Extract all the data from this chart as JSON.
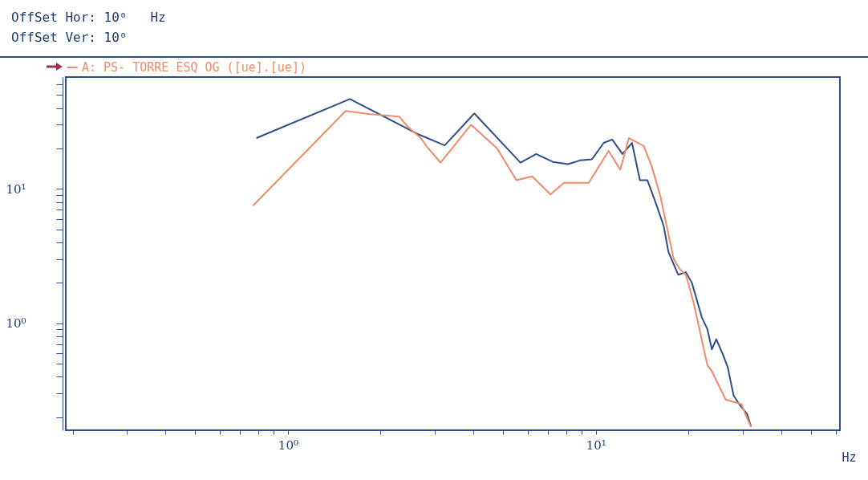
{
  "chart_data": {
    "type": "line",
    "xlabel": "Hz",
    "legend": "top left",
    "marker": "none",
    "line_style": "solid",
    "grid": false,
    "log": "xy",
    "annotations": [
      "OffSet Hor: 10⁰   Hz",
      "OffSet Ver: 10⁰"
    ],
    "xlim": [
      0.19,
      62
    ],
    "ylim": [
      0.16,
      68
    ],
    "xticks": [
      {
        "value": 0.2,
        "label": null
      },
      {
        "value": 0.3,
        "label": null
      },
      {
        "value": 0.4,
        "label": null
      },
      {
        "value": 0.5,
        "label": null
      },
      {
        "value": 0.6,
        "label": null
      },
      {
        "value": 0.7,
        "label": null
      },
      {
        "value": 0.8,
        "label": null
      },
      {
        "value": 0.9,
        "label": null
      },
      {
        "value": 1,
        "label": "10⁰"
      },
      {
        "value": 2,
        "label": null
      },
      {
        "value": 3,
        "label": null
      },
      {
        "value": 4,
        "label": null
      },
      {
        "value": 5,
        "label": null
      },
      {
        "value": 6,
        "label": null
      },
      {
        "value": 7,
        "label": null
      },
      {
        "value": 8,
        "label": null
      },
      {
        "value": 9,
        "label": null
      },
      {
        "value": 10,
        "label": "10¹"
      },
      {
        "value": 20,
        "label": null
      },
      {
        "value": 30,
        "label": null
      },
      {
        "value": 40,
        "label": null
      },
      {
        "value": 50,
        "label": null
      },
      {
        "value": 60,
        "label": null
      }
    ],
    "yticks": [
      {
        "value": 0.2,
        "label": null
      },
      {
        "value": 0.3,
        "label": null
      },
      {
        "value": 0.4,
        "label": null
      },
      {
        "value": 0.5,
        "label": null
      },
      {
        "value": 0.6,
        "label": null
      },
      {
        "value": 0.7,
        "label": null
      },
      {
        "value": 0.8,
        "label": null
      },
      {
        "value": 0.9,
        "label": null
      },
      {
        "value": 1,
        "label": "10⁰"
      },
      {
        "value": 2,
        "label": null
      },
      {
        "value": 3,
        "label": null
      },
      {
        "value": 4,
        "label": null
      },
      {
        "value": 5,
        "label": null
      },
      {
        "value": 6,
        "label": null
      },
      {
        "value": 7,
        "label": null
      },
      {
        "value": 8,
        "label": null
      },
      {
        "value": 9,
        "label": null
      },
      {
        "value": 10,
        "label": "10¹"
      },
      {
        "value": 20,
        "label": null
      },
      {
        "value": 30,
        "label": null
      },
      {
        "value": 40,
        "label": null
      },
      {
        "value": 50,
        "label": null
      },
      {
        "value": 60,
        "label": null
      }
    ],
    "series": [
      {
        "color": "#2e4e8c",
        "x": [
          0.79,
          1.59,
          2.64,
          3.23,
          4.03,
          5.69,
          6.4,
          7.25,
          8.12,
          8.88,
          9.71,
          10.6,
          11.3,
          12.2,
          13.1,
          13.9,
          14.7,
          15.7,
          16.6,
          17.2,
          18.5,
          19.6,
          20.5,
          22.1,
          23.0,
          23.8,
          24.6,
          25.9,
          26.8,
          28.0,
          29.2,
          31.0,
          31.9
        ],
        "values": [
          23.9,
          46.7,
          25.6,
          21.1,
          36.5,
          15.7,
          18.2,
          15.9,
          15.3,
          16.3,
          16.6,
          22.0,
          23.3,
          18.2,
          22.0,
          11.6,
          11.6,
          7.7,
          5.3,
          3.4,
          2.3,
          2.4,
          2.0,
          1.1,
          0.91,
          0.64,
          0.76,
          0.58,
          0.47,
          0.29,
          0.25,
          0.21,
          0.17
        ]
      },
      {
        "name": "A: PS- TORRE ESQ OG ([ue].[ue])",
        "color": "#f08a6a",
        "x": [
          0.77,
          1.54,
          1.85,
          2.3,
          2.44,
          2.7,
          2.83,
          3.13,
          3.93,
          4.78,
          5.52,
          6.21,
          7.12,
          7.88,
          9.48,
          11.0,
          12.0,
          12.8,
          14.3,
          15.2,
          16.2,
          17.9,
          18.8,
          19.6,
          20.8,
          23.0,
          23.8,
          26.4,
          29.7,
          30.6,
          31.9
        ],
        "values": [
          7.5,
          38.0,
          36.0,
          34.5,
          29.3,
          23.9,
          20.6,
          15.7,
          30.1,
          20.0,
          11.6,
          12.4,
          9.1,
          11.1,
          11.1,
          19.2,
          13.9,
          23.9,
          20.9,
          14.6,
          8.8,
          3.0,
          2.5,
          2.3,
          1.4,
          0.49,
          0.44,
          0.27,
          0.25,
          0.21,
          0.17
        ]
      }
    ]
  }
}
